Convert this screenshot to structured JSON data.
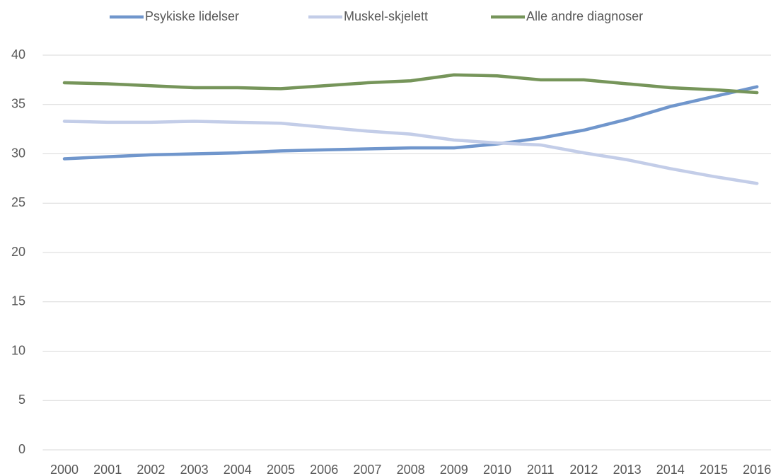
{
  "chart_data": {
    "type": "line",
    "categories": [
      "2000",
      "2001",
      "2002",
      "2003",
      "2004",
      "2005",
      "2006",
      "2007",
      "2008",
      "2009",
      "2010",
      "2011",
      "2012",
      "2013",
      "2014",
      "2015",
      "2016"
    ],
    "series": [
      {
        "name": "Psykiske lidelser",
        "color": "#7096cc",
        "values": [
          29.5,
          29.7,
          29.9,
          30.0,
          30.1,
          30.3,
          30.4,
          30.5,
          30.6,
          30.6,
          31.0,
          31.6,
          32.4,
          33.5,
          34.8,
          35.8,
          36.8
        ]
      },
      {
        "name": "Muskel-skjelett",
        "color": "#c3cde8",
        "values": [
          33.3,
          33.2,
          33.2,
          33.3,
          33.2,
          33.1,
          32.7,
          32.3,
          32.0,
          31.4,
          31.1,
          30.9,
          30.1,
          29.4,
          28.5,
          27.7,
          27.0
        ]
      },
      {
        "name": "Alle andre diagnoser",
        "color": "#76955a",
        "values": [
          37.2,
          37.1,
          36.9,
          36.7,
          36.7,
          36.6,
          36.9,
          37.2,
          37.4,
          38.0,
          37.9,
          37.5,
          37.5,
          37.1,
          36.7,
          36.5,
          36.2
        ]
      }
    ],
    "ylim": [
      0,
      40
    ],
    "yticks": [
      0,
      5,
      10,
      15,
      20,
      25,
      30,
      35,
      40
    ],
    "grid": true,
    "legend": "top"
  }
}
